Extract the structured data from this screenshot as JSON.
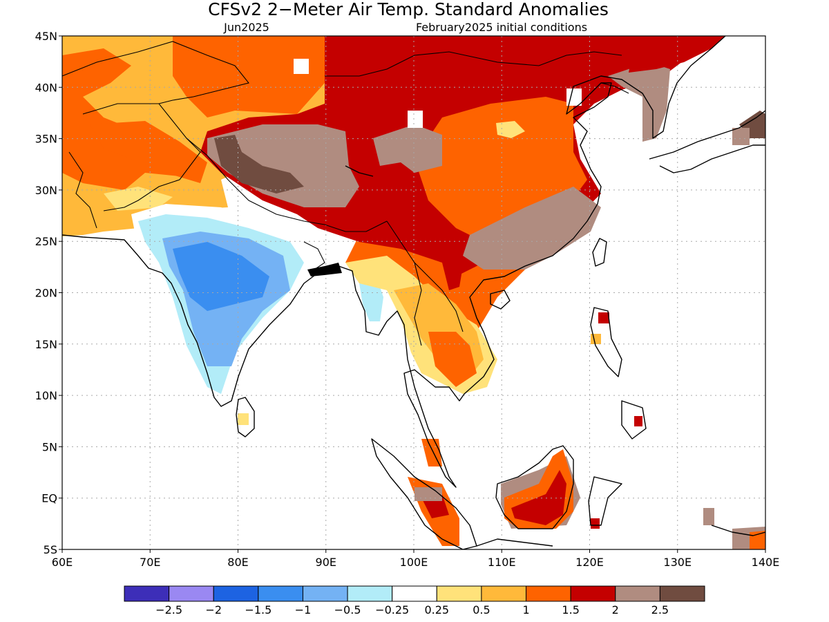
{
  "title": "CFSv2 2−Meter Air Temp. Standard Anomalies",
  "subtitle_left": "Jun2025",
  "subtitle_right": "February2025 initial conditions",
  "map": {
    "lon_range": [
      60,
      140
    ],
    "lat_range": [
      -5,
      45
    ],
    "grid": true,
    "lon_ticks": [
      {
        "value": 60,
        "label": "60E"
      },
      {
        "value": 70,
        "label": "70E"
      },
      {
        "value": 80,
        "label": "80E"
      },
      {
        "value": 90,
        "label": "90E"
      },
      {
        "value": 100,
        "label": "100E"
      },
      {
        "value": 110,
        "label": "110E"
      },
      {
        "value": 120,
        "label": "120E"
      },
      {
        "value": 130,
        "label": "130E"
      },
      {
        "value": 140,
        "label": "140E"
      }
    ],
    "lat_ticks": [
      {
        "value": 45,
        "label": "45N"
      },
      {
        "value": 40,
        "label": "40N"
      },
      {
        "value": 35,
        "label": "35N"
      },
      {
        "value": 30,
        "label": "30N"
      },
      {
        "value": 25,
        "label": "25N"
      },
      {
        "value": 20,
        "label": "20N"
      },
      {
        "value": 15,
        "label": "15N"
      },
      {
        "value": 10,
        "label": "10N"
      },
      {
        "value": 5,
        "label": "5N"
      },
      {
        "value": 0,
        "label": "EQ"
      },
      {
        "value": -5,
        "label": "5S"
      }
    ]
  },
  "colorbar": {
    "colors": [
      "#3d2eb8",
      "#9a88f2",
      "#1d63e2",
      "#3a8ef0",
      "#74b2f4",
      "#b2ecf8",
      "#ffffff",
      "#ffe27a",
      "#ffb93a",
      "#fe6300",
      "#c40000",
      "#b08c80",
      "#704c40"
    ],
    "labels": [
      "−2.5",
      "−2",
      "−1.5",
      "−1",
      "−0.5",
      "−0.25",
      "0.25",
      "0.5",
      "1",
      "1.5",
      "2",
      "2.5"
    ]
  },
  "colors": {
    "frame": "#000000",
    "grid": "#a8a8a8",
    "coast": "#000000"
  }
}
